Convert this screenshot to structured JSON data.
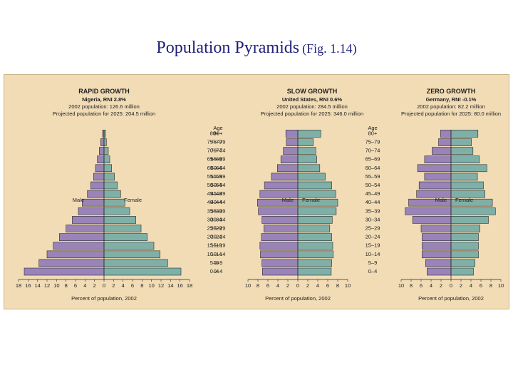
{
  "title": {
    "main": "Population Pyramids",
    "fig": "(Fig. 1.14)"
  },
  "colors": {
    "male": "#9a83b8",
    "female": "#7fb0a7",
    "background": "#f1dcb6",
    "bar_stroke": "#2b2b2b"
  },
  "chart_data": [
    {
      "type": "bar",
      "title": "RAPID GROWTH",
      "subtitle": [
        "Nigeria, RNI 2.8%",
        "2002 population: 126.6 million",
        "Projected population for 2025: 204.5 million"
      ],
      "categories": [
        "0–4",
        "5–9",
        "10–14",
        "15–19",
        "20–24",
        "25–29",
        "30–34",
        "35–39",
        "40–44",
        "45–49",
        "50–54",
        "55–59",
        "60–64",
        "65–69",
        "70–74",
        "75–79",
        "80+"
      ],
      "series": [
        {
          "name": "Male",
          "values": [
            16.8,
            13.7,
            12.0,
            10.7,
            9.4,
            8.0,
            6.7,
            5.4,
            4.6,
            3.5,
            2.8,
            2.2,
            1.8,
            1.4,
            1.0,
            0.7,
            0.3
          ]
        },
        {
          "name": "Female",
          "values": [
            16.2,
            13.4,
            11.8,
            10.5,
            9.1,
            7.8,
            6.7,
            5.4,
            4.4,
            3.5,
            2.8,
            2.2,
            1.6,
            1.2,
            0.9,
            0.5,
            0.3
          ]
        }
      ],
      "series_labels": {
        "male": "Male",
        "female": "Female"
      },
      "x_ticks": [
        "18",
        "16",
        "14",
        "12",
        "10",
        "8",
        "6",
        "4",
        "2",
        "0",
        "2",
        "4",
        "6",
        "8",
        "10",
        "12",
        "14",
        "16",
        "18"
      ],
      "xlim": [
        -18,
        18
      ],
      "xlabel": "Percent of population, 2002",
      "age_label": ""
    },
    {
      "type": "bar",
      "title": "SLOW GROWTH",
      "subtitle": [
        "United States, RNI 0.6%",
        "2002 population: 284.5 million",
        "Projected population for 2025: 346.0 million"
      ],
      "categories": [
        "0–4",
        "5–9",
        "10–14",
        "15–19",
        "20–24",
        "25–29",
        "30–34",
        "35–39",
        "40–44",
        "45–49",
        "50–54",
        "55–59",
        "60–64",
        "65–69",
        "70–74",
        "75–79",
        "80+"
      ],
      "series": [
        {
          "name": "Male",
          "values": [
            7.1,
            7.2,
            7.5,
            7.6,
            7.3,
            6.8,
            7.2,
            7.9,
            8.1,
            7.6,
            6.7,
            5.3,
            4.1,
            3.4,
            2.9,
            2.3,
            2.4
          ]
        },
        {
          "name": "Female",
          "values": [
            6.7,
            6.8,
            7.1,
            7.0,
            6.8,
            6.4,
            6.9,
            7.7,
            8.0,
            7.6,
            6.8,
            5.5,
            4.4,
            3.8,
            3.6,
            3.1,
            4.6
          ]
        }
      ],
      "series_labels": {
        "male": "Male",
        "female": "Female"
      },
      "x_ticks": [
        "10",
        "8",
        "6",
        "4",
        "2",
        "0",
        "2",
        "4",
        "6",
        "8",
        "10"
      ],
      "xlim": [
        -10,
        10
      ],
      "xlabel": "Percent of population, 2002",
      "age_label": "Age"
    },
    {
      "type": "bar",
      "title": "ZERO GROWTH",
      "subtitle": [
        "Germany, RNI -0.1%",
        "2002 population: 82.2 million",
        "Projected population for 2025: 80.0 million"
      ],
      "categories": [
        "0–4",
        "5–9",
        "10–14",
        "15–19",
        "20–24",
        "25–29",
        "30–34",
        "35–39",
        "40–44",
        "45–49",
        "50–54",
        "55–59",
        "60–64",
        "65–69",
        "70–74",
        "75–79",
        "80+"
      ],
      "series": [
        {
          "name": "Male",
          "values": [
            4.8,
            5.1,
            5.8,
            5.8,
            5.8,
            6.0,
            7.7,
            9.2,
            8.5,
            6.9,
            6.4,
            5.3,
            6.7,
            5.3,
            3.8,
            2.5,
            2.1
          ]
        },
        {
          "name": "Female",
          "values": [
            4.5,
            4.8,
            5.5,
            5.5,
            5.5,
            5.8,
            7.5,
            8.9,
            8.3,
            6.8,
            6.5,
            5.3,
            7.2,
            5.7,
            4.4,
            4.1,
            5.4
          ]
        }
      ],
      "series_labels": {
        "male": "Male",
        "female": "Female"
      },
      "x_ticks": [
        "10",
        "8",
        "6",
        "4",
        "2",
        "0",
        "2",
        "4",
        "6",
        "8",
        "10"
      ],
      "xlim": [
        -10,
        10
      ],
      "xlabel": "Percent of population, 2002",
      "age_label": "Age"
    }
  ]
}
